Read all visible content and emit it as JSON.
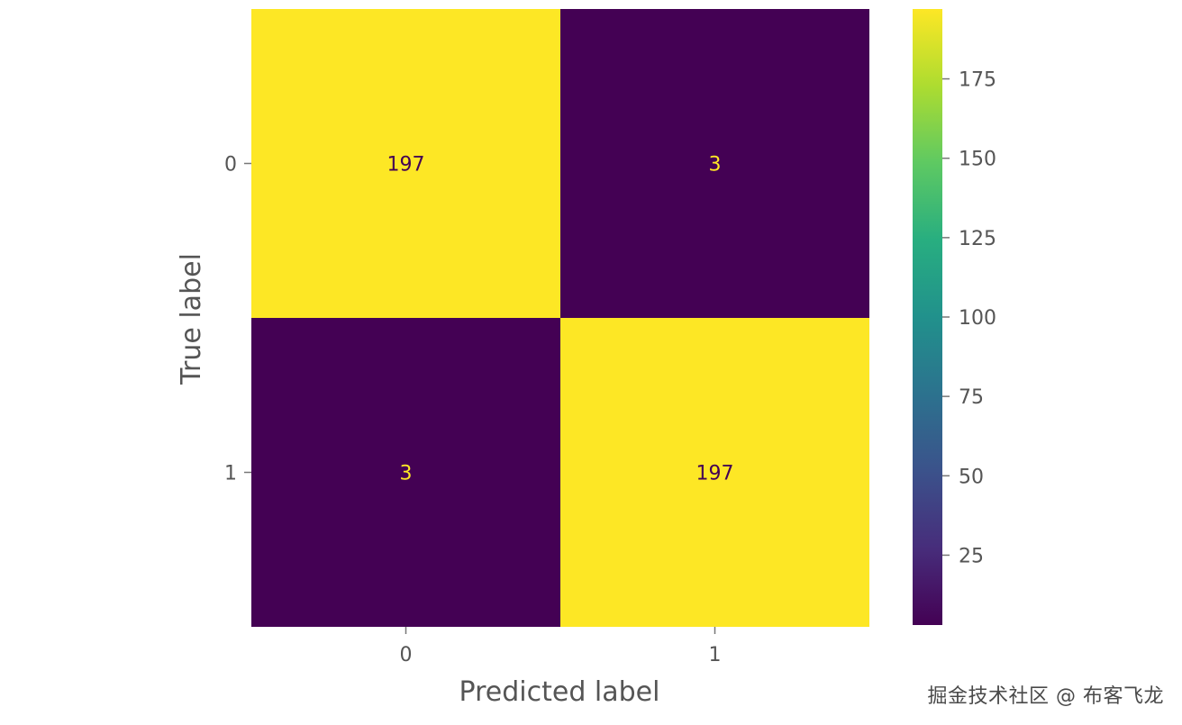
{
  "chart_data": {
    "type": "heatmap",
    "title": "",
    "xlabel": "Predicted label",
    "ylabel": "True label",
    "x_categories": [
      "0",
      "1"
    ],
    "y_categories": [
      "0",
      "1"
    ],
    "matrix": [
      [
        197,
        3
      ],
      [
        3,
        197
      ]
    ],
    "colormap": "viridis",
    "colorbar": {
      "range": [
        3,
        197
      ],
      "ticks": [
        25,
        50,
        75,
        100,
        125,
        150,
        175
      ]
    },
    "grid": false
  },
  "watermark": "掘金技术社区 @ 布客飞龙"
}
